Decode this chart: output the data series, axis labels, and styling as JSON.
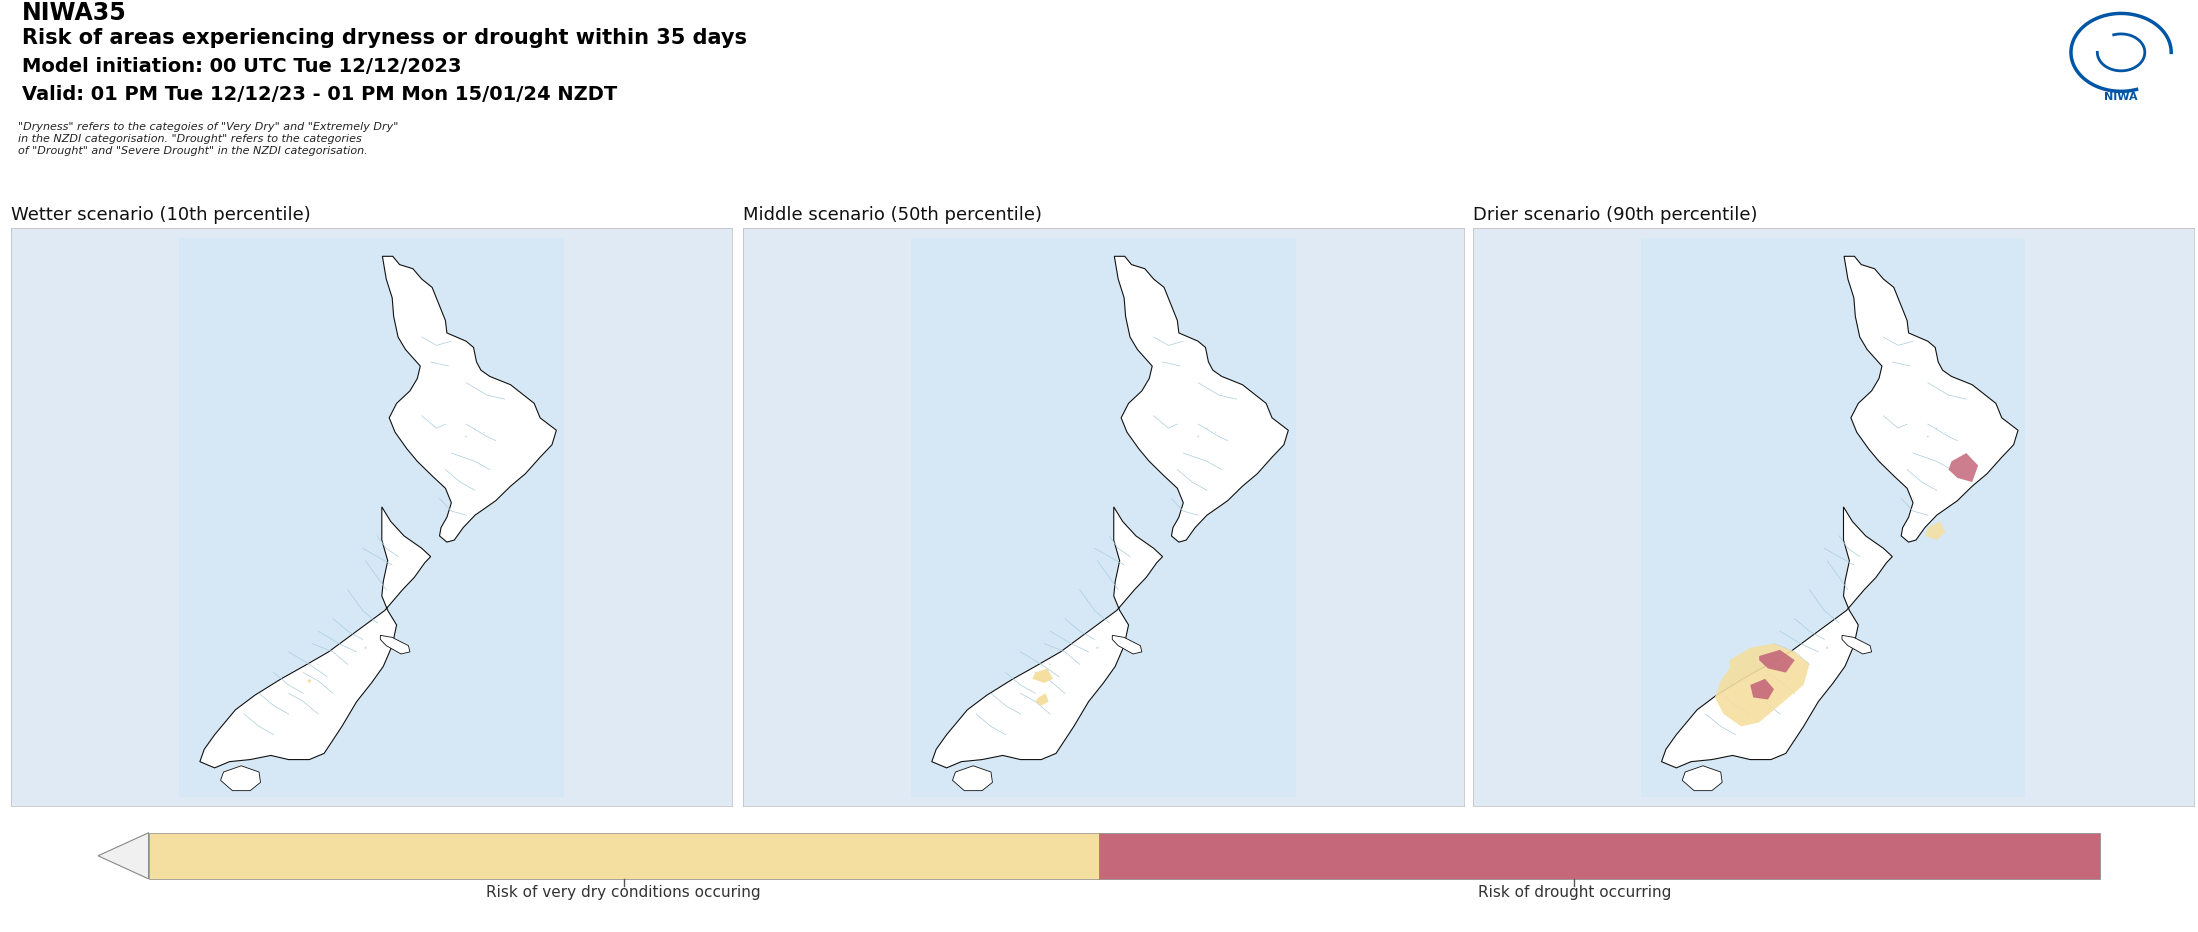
{
  "title_line1": "NIWA35",
  "title_line2": "Risk of areas experiencing dryness or drought within 35 days",
  "title_line3": "Model initiation: 00 UTC Tue 12/12/2023",
  "title_line4": "Valid: 01 PM Tue 12/12/23 - 01 PM Mon 15/01/24 NZDT",
  "footnote": "\"Dryness\" refers to the categoies of \"Very Dry\" and \"Extremely Dry\"\nin the NZDI categorisation. \"Drought\" refers to the categories\nof \"Drought\" and \"Severe Drought\" in the NZDI categorisation.",
  "panel_titles": [
    "Wetter scenario (10th percentile)",
    "Middle scenario (50th percentile)",
    "Drier scenario (90th percentile)"
  ],
  "legend_label_left": "Risk of very dry conditions occuring",
  "legend_label_right": "Risk of drought occurring",
  "color_dry": "#F5DFA0",
  "color_drought": "#C4687A",
  "color_map_bg": "#D6E8F5",
  "color_panel_bg": "#E0EAF5",
  "color_land": "#FFFFFF",
  "color_land_stroke": "#111111",
  "color_region_lines": "#AACCDD",
  "background_color": "#FFFFFF",
  "niwa_logo_color": "#003087",
  "lon_min": 165.8,
  "lon_max": 178.8,
  "lat_min": -47.5,
  "lat_max": -34.0
}
